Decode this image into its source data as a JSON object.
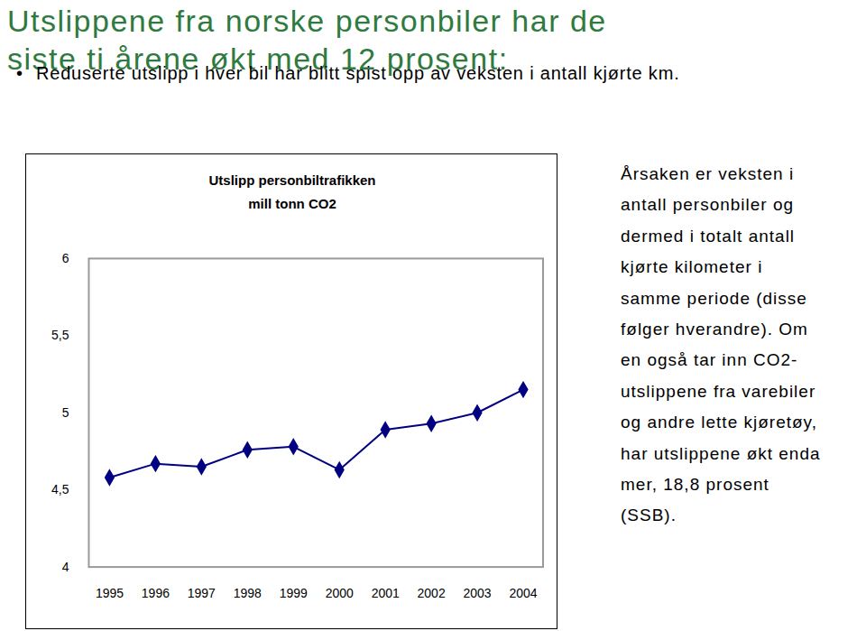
{
  "heading": [
    "Utslippene fra norske personbiler har de",
    "siste ti årene økt med 12 prosent:"
  ],
  "bullet": "Reduserte utslipp i hver bil har blitt spist opp av veksten i antall kjørte km.",
  "side_text": [
    "Årsaken er veksten i",
    "antall personbiler og",
    "dermed i totalt antall",
    "kjørte kilometer i",
    "samme periode (disse",
    "følger hverandre). Om",
    "en også tar inn CO2-",
    "utslippene fra varebiler",
    "og andre lette kjøretøy,",
    "har utslippene økt enda",
    "mer, 18,8 prosent",
    "(SSB)."
  ],
  "chart_data": {
    "type": "line",
    "title": "Utslipp personbiltrafikken",
    "subtitle": "mill tonn CO2",
    "categories": [
      "1995",
      "1996",
      "1997",
      "1998",
      "1999",
      "2000",
      "2001",
      "2002",
      "2003",
      "2004"
    ],
    "values": [
      4.58,
      4.67,
      4.65,
      4.76,
      4.78,
      4.63,
      4.89,
      4.93,
      5.0,
      5.15
    ],
    "color": "#000080",
    "marker": "diamond",
    "ylim": [
      4,
      6
    ],
    "yticks": [
      4,
      {
        "value": 4.5,
        "label": "4,5"
      },
      5,
      {
        "value": 5.5,
        "label": "5,5"
      },
      6
    ],
    "grid": false
  }
}
